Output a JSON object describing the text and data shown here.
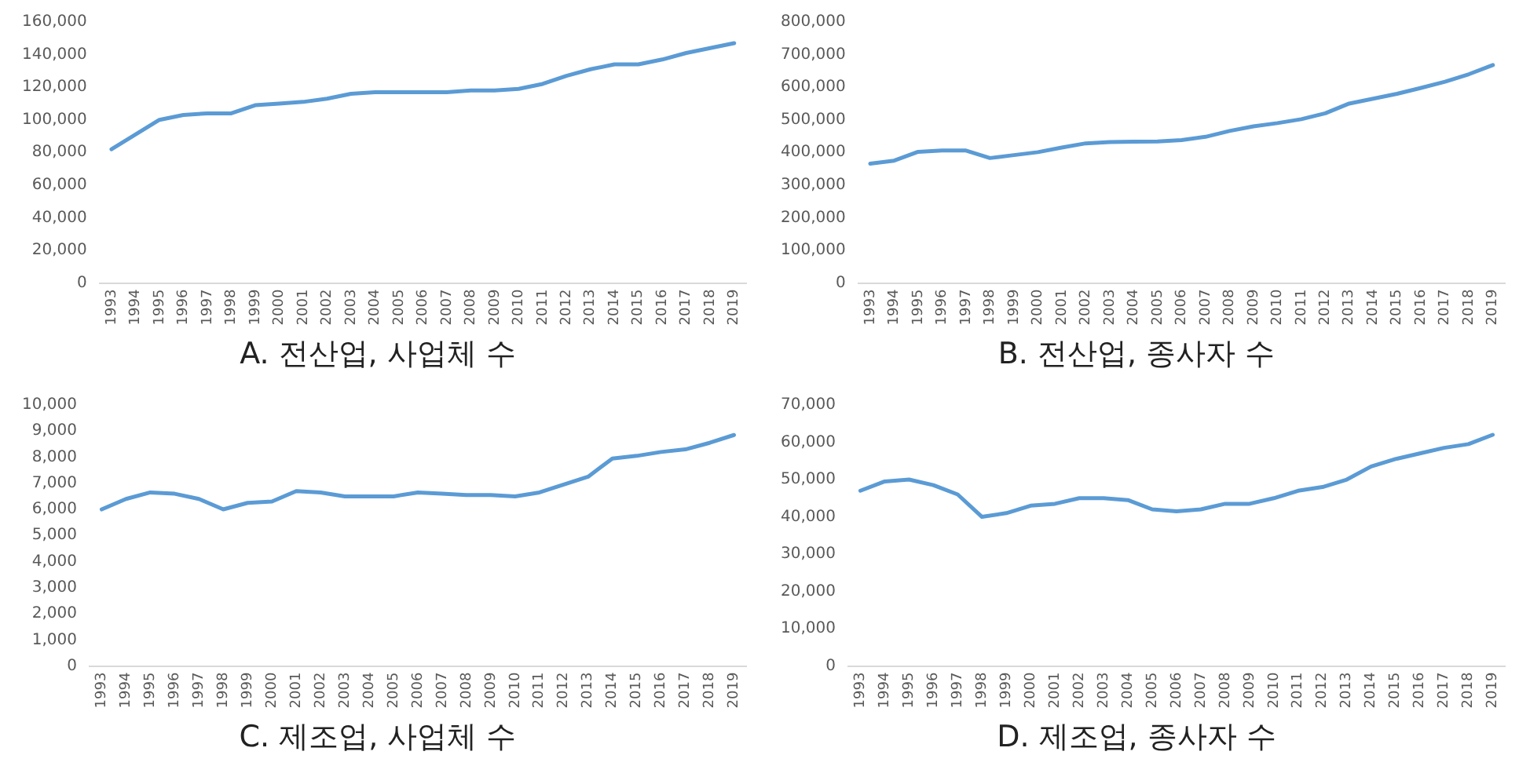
{
  "chart_data": [
    {
      "type": "line",
      "title": "A. 전산업, 사업체 수",
      "categories": [
        "1993",
        "1994",
        "1995",
        "1996",
        "1997",
        "1998",
        "1999",
        "2000",
        "2001",
        "2002",
        "2003",
        "2004",
        "2005",
        "2006",
        "2007",
        "2008",
        "2009",
        "2010",
        "2011",
        "2012",
        "2013",
        "2014",
        "2015",
        "2016",
        "2017",
        "2018",
        "2019"
      ],
      "series": [
        {
          "color": "#5b9bd5",
          "values": [
            82000,
            91000,
            100000,
            103000,
            104000,
            104000,
            109000,
            110000,
            111000,
            113000,
            116000,
            117000,
            117000,
            117000,
            117000,
            118000,
            118000,
            119000,
            122000,
            127000,
            131000,
            134000,
            134000,
            137000,
            141000,
            144000,
            147000
          ]
        }
      ],
      "ylim": [
        0,
        160000
      ],
      "yticks": [
        {
          "value": 0,
          "label": "0"
        },
        {
          "value": 20000,
          "label": "20,000"
        },
        {
          "value": 40000,
          "label": "40,000"
        },
        {
          "value": 60000,
          "label": "60,000"
        },
        {
          "value": 80000,
          "label": "80,000"
        },
        {
          "value": 100000,
          "label": "100,000"
        },
        {
          "value": 120000,
          "label": "120,000"
        },
        {
          "value": 140000,
          "label": "140,000"
        },
        {
          "value": 160000,
          "label": "160,000"
        }
      ],
      "marker": "none",
      "legend": false
    },
    {
      "type": "line",
      "title": "B. 전산업, 종사자 수",
      "categories": [
        "1993",
        "1994",
        "1995",
        "1996",
        "1997",
        "1998",
        "1999",
        "2000",
        "2001",
        "2002",
        "2003",
        "2004",
        "2005",
        "2006",
        "2007",
        "2008",
        "2009",
        "2010",
        "2011",
        "2012",
        "2013",
        "2014",
        "2015",
        "2016",
        "2017",
        "2018",
        "2019"
      ],
      "series": [
        {
          "color": "#5b9bd5",
          "values": [
            366000,
            375000,
            402000,
            406000,
            406000,
            383000,
            392000,
            401000,
            415000,
            428000,
            432000,
            433000,
            434000,
            438000,
            448000,
            466000,
            480000,
            490000,
            502000,
            520000,
            550000,
            565000,
            580000,
            598000,
            617000,
            640000,
            668000
          ]
        }
      ],
      "ylim": [
        0,
        800000
      ],
      "yticks": [
        {
          "value": 0,
          "label": "0"
        },
        {
          "value": 100000,
          "label": "100,000"
        },
        {
          "value": 200000,
          "label": "200,000"
        },
        {
          "value": 300000,
          "label": "300,000"
        },
        {
          "value": 400000,
          "label": "400,000"
        },
        {
          "value": 500000,
          "label": "500,000"
        },
        {
          "value": 600000,
          "label": "600,000"
        },
        {
          "value": 700000,
          "label": "700,000"
        },
        {
          "value": 800000,
          "label": "800,000"
        }
      ],
      "marker": "none",
      "legend": false
    },
    {
      "type": "line",
      "title": "C. 제조업, 사업체 수",
      "categories": [
        "1993",
        "1994",
        "1995",
        "1996",
        "1997",
        "1998",
        "1999",
        "2000",
        "2001",
        "2002",
        "2003",
        "2004",
        "2005",
        "2006",
        "2007",
        "2008",
        "2009",
        "2010",
        "2011",
        "2012",
        "2013",
        "2014",
        "2015",
        "2016",
        "2017",
        "2018",
        "2019"
      ],
      "series": [
        {
          "color": "#5b9bd5",
          "values": [
            6000,
            6400,
            6650,
            6600,
            6400,
            6000,
            6250,
            6300,
            6700,
            6650,
            6500,
            6500,
            6500,
            6650,
            6600,
            6550,
            6550,
            6500,
            6650,
            6950,
            7250,
            7950,
            8050,
            8200,
            8300,
            8550,
            8850
          ]
        }
      ],
      "ylim": [
        0,
        10000
      ],
      "yticks": [
        {
          "value": 0,
          "label": "0"
        },
        {
          "value": 1000,
          "label": "1,000"
        },
        {
          "value": 2000,
          "label": "2,000"
        },
        {
          "value": 3000,
          "label": "3,000"
        },
        {
          "value": 4000,
          "label": "4,000"
        },
        {
          "value": 5000,
          "label": "5,000"
        },
        {
          "value": 6000,
          "label": "6,000"
        },
        {
          "value": 7000,
          "label": "7,000"
        },
        {
          "value": 8000,
          "label": "8,000"
        },
        {
          "value": 9000,
          "label": "9,000"
        },
        {
          "value": 10000,
          "label": "10,000"
        }
      ],
      "marker": "none",
      "legend": false
    },
    {
      "type": "line",
      "title": "D. 제조업, 종사자 수",
      "categories": [
        "1993",
        "1994",
        "1995",
        "1996",
        "1997",
        "1998",
        "1999",
        "2000",
        "2001",
        "2002",
        "2003",
        "2004",
        "2005",
        "2006",
        "2007",
        "2008",
        "2009",
        "2010",
        "2011",
        "2012",
        "2013",
        "2014",
        "2015",
        "2016",
        "2017",
        "2018",
        "2019"
      ],
      "series": [
        {
          "color": "#5b9bd5",
          "values": [
            47000,
            49500,
            50000,
            48500,
            46000,
            40000,
            41000,
            43000,
            43500,
            45000,
            45000,
            44500,
            42000,
            41500,
            42000,
            43500,
            43500,
            45000,
            47000,
            48000,
            50000,
            53500,
            55500,
            57000,
            58500,
            59500,
            62000
          ]
        }
      ],
      "ylim": [
        0,
        70000
      ],
      "yticks": [
        {
          "value": 0,
          "label": "0"
        },
        {
          "value": 10000,
          "label": "10,000"
        },
        {
          "value": 20000,
          "label": "20,000"
        },
        {
          "value": 30000,
          "label": "30,000"
        },
        {
          "value": 40000,
          "label": "40,000"
        },
        {
          "value": 50000,
          "label": "50,000"
        },
        {
          "value": 60000,
          "label": "60,000"
        },
        {
          "value": 70000,
          "label": "70,000"
        }
      ],
      "marker": "none",
      "legend": false
    }
  ]
}
